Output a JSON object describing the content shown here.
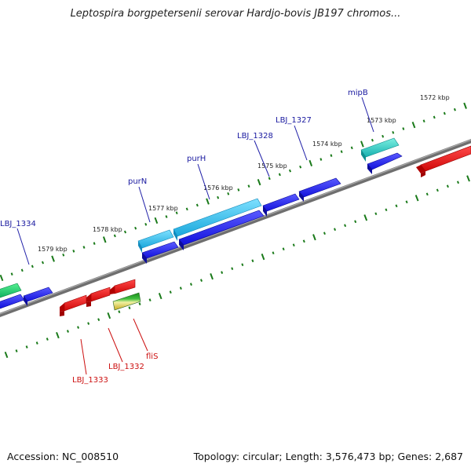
{
  "title": "Leptospira borgpetersenii serovar Hardjo-bovis JB197 chromos...",
  "footer": {
    "accession": "Accession: NC_008510",
    "stats": "Topology: circular; Length: 3,576,473 bp; Genes: 2,687"
  },
  "colors": {
    "backbone": "#7a7a7a",
    "forward_gene": "#1a1aee",
    "reverse_gene": "#e01010",
    "highlight_gene": "#22b5e0",
    "teal_gene": "#1fc6c0",
    "tick": "#1a7a1a",
    "label_forward": "#1a1aa0",
    "label_reverse": "#cc1010"
  },
  "scale_labels": [
    "1572 kbp",
    "1573 kbp",
    "1574 kbp",
    "1575 kbp",
    "1576 kbp",
    "1577 kbp",
    "1578 kbp",
    "1579 kbp"
  ],
  "gene_labels": {
    "mipB": "mipB",
    "lbj1327": "LBJ_1327",
    "lbj1328": "LBJ_1328",
    "purH": "purH",
    "purN": "purN",
    "lbj1334": "LBJ_1334",
    "lbj1333": "LBJ_1333",
    "lbj1332": "LBJ_1332",
    "fliS": "fliS"
  }
}
